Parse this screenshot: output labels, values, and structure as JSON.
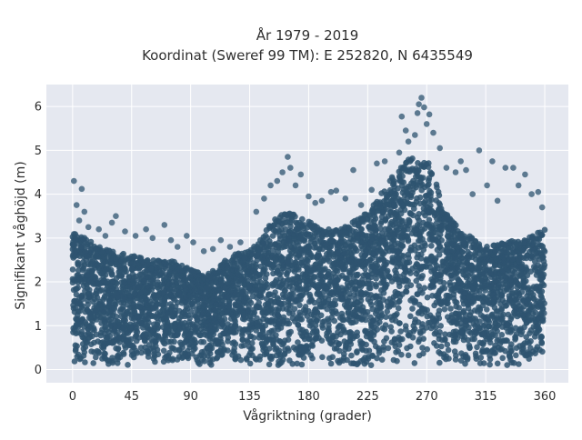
{
  "chart_data": {
    "type": "scatter",
    "title_line1": "År 1979 - 2019",
    "title_line2": "Koordinat (Sweref 99 TM): E 252820, N 6435549",
    "xlabel": "Vågriktning (grader)",
    "ylabel": "Signifikant våghöjd (m)",
    "xlim": [
      -20,
      378
    ],
    "ylim": [
      -0.3,
      6.5
    ],
    "xticks": [
      0,
      45,
      90,
      135,
      180,
      225,
      270,
      315,
      360
    ],
    "yticks": [
      0,
      1,
      2,
      3,
      4,
      5,
      6
    ],
    "grid": true,
    "legend": "none",
    "colors": {
      "marker": "#2e5470",
      "background": "#e5e8f0",
      "grid": "#ffffff"
    },
    "envelope": {
      "x": [
        0,
        10,
        20,
        30,
        45,
        60,
        75,
        90,
        100,
        110,
        120,
        135,
        145,
        155,
        165,
        180,
        190,
        200,
        210,
        225,
        235,
        245,
        255,
        262,
        270,
        278,
        285,
        295,
        305,
        315,
        330,
        345,
        360
      ],
      "y_max": [
        3.2,
        3.0,
        2.8,
        2.7,
        2.6,
        2.5,
        2.5,
        2.3,
        2.15,
        2.3,
        2.6,
        2.75,
        3.1,
        3.5,
        3.6,
        3.4,
        3.2,
        3.2,
        3.3,
        3.6,
        4.0,
        4.5,
        4.8,
        4.9,
        4.8,
        4.3,
        3.6,
        3.2,
        3.0,
        2.8,
        2.9,
        3.0,
        3.2
      ],
      "y_min": 0.1
    },
    "outliers": [
      {
        "x": 1,
        "y": 4.3
      },
      {
        "x": 7,
        "y": 4.12
      },
      {
        "x": 3,
        "y": 3.75
      },
      {
        "x": 9,
        "y": 3.6
      },
      {
        "x": 5,
        "y": 3.4
      },
      {
        "x": 12,
        "y": 3.25
      },
      {
        "x": 20,
        "y": 3.2
      },
      {
        "x": 25,
        "y": 3.05
      },
      {
        "x": 30,
        "y": 3.35
      },
      {
        "x": 33,
        "y": 3.5
      },
      {
        "x": 40,
        "y": 3.15
      },
      {
        "x": 48,
        "y": 3.05
      },
      {
        "x": 56,
        "y": 3.2
      },
      {
        "x": 61,
        "y": 3.0
      },
      {
        "x": 70,
        "y": 3.3
      },
      {
        "x": 75,
        "y": 2.95
      },
      {
        "x": 80,
        "y": 2.8
      },
      {
        "x": 87,
        "y": 3.05
      },
      {
        "x": 92,
        "y": 2.9
      },
      {
        "x": 100,
        "y": 2.7
      },
      {
        "x": 107,
        "y": 2.75
      },
      {
        "x": 113,
        "y": 2.95
      },
      {
        "x": 120,
        "y": 2.8
      },
      {
        "x": 128,
        "y": 2.9
      },
      {
        "x": 140,
        "y": 3.6
      },
      {
        "x": 146,
        "y": 3.9
      },
      {
        "x": 151,
        "y": 4.2
      },
      {
        "x": 156,
        "y": 4.3
      },
      {
        "x": 160,
        "y": 4.5
      },
      {
        "x": 164,
        "y": 4.85
      },
      {
        "x": 166,
        "y": 4.6
      },
      {
        "x": 170,
        "y": 4.2
      },
      {
        "x": 174,
        "y": 4.45
      },
      {
        "x": 180,
        "y": 3.95
      },
      {
        "x": 185,
        "y": 3.8
      },
      {
        "x": 190,
        "y": 3.85
      },
      {
        "x": 197,
        "y": 4.05
      },
      {
        "x": 201,
        "y": 4.08
      },
      {
        "x": 208,
        "y": 3.9
      },
      {
        "x": 214,
        "y": 4.55
      },
      {
        "x": 220,
        "y": 3.75
      },
      {
        "x": 228,
        "y": 4.1
      },
      {
        "x": 232,
        "y": 4.7
      },
      {
        "x": 238,
        "y": 4.75
      },
      {
        "x": 244,
        "y": 4.35
      },
      {
        "x": 249,
        "y": 4.95
      },
      {
        "x": 251,
        "y": 5.77
      },
      {
        "x": 254,
        "y": 5.45
      },
      {
        "x": 256,
        "y": 5.2
      },
      {
        "x": 261,
        "y": 5.35
      },
      {
        "x": 263,
        "y": 5.85
      },
      {
        "x": 264,
        "y": 6.05
      },
      {
        "x": 266,
        "y": 6.2
      },
      {
        "x": 268,
        "y": 5.98
      },
      {
        "x": 270,
        "y": 5.6
      },
      {
        "x": 272,
        "y": 5.82
      },
      {
        "x": 275,
        "y": 5.4
      },
      {
        "x": 280,
        "y": 5.05
      },
      {
        "x": 285,
        "y": 4.6
      },
      {
        "x": 292,
        "y": 4.5
      },
      {
        "x": 296,
        "y": 4.75
      },
      {
        "x": 300,
        "y": 4.55
      },
      {
        "x": 305,
        "y": 4.0
      },
      {
        "x": 310,
        "y": 5.0
      },
      {
        "x": 316,
        "y": 4.2
      },
      {
        "x": 320,
        "y": 4.75
      },
      {
        "x": 324,
        "y": 3.85
      },
      {
        "x": 330,
        "y": 4.6
      },
      {
        "x": 336,
        "y": 4.6
      },
      {
        "x": 340,
        "y": 4.2
      },
      {
        "x": 345,
        "y": 4.45
      },
      {
        "x": 350,
        "y": 4.0
      },
      {
        "x": 355,
        "y": 4.05
      },
      {
        "x": 358,
        "y": 3.7
      }
    ]
  }
}
